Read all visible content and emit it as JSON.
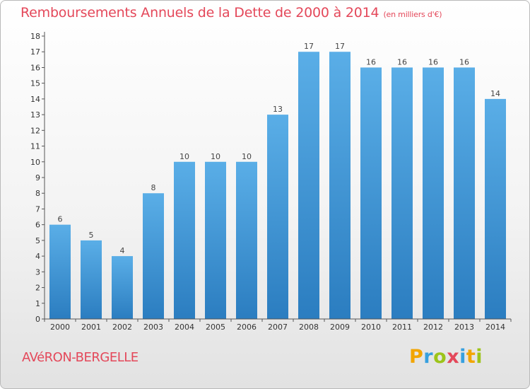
{
  "header": {
    "title": "Remboursements Annuels de la Dette de 2000 à 2014",
    "unit": "(en milliers d'€)"
  },
  "footer": {
    "commune": "AVéRON-BERGELLE",
    "logo_letters": [
      "P",
      "r",
      "o",
      "x",
      "i",
      "t",
      "i"
    ],
    "logo_colors": [
      "#f2a500",
      "#37a0df",
      "#9dc41a",
      "#e4485a",
      "#37a0df",
      "#f2a500",
      "#9dc41a"
    ]
  },
  "chart_data": {
    "type": "bar",
    "title": "Remboursements Annuels de la Dette de 2000 à 2014",
    "xlabel": "",
    "ylabel": "",
    "categories": [
      "2000",
      "2001",
      "2002",
      "2003",
      "2004",
      "2005",
      "2006",
      "2007",
      "2008",
      "2009",
      "2010",
      "2011",
      "2012",
      "2013",
      "2014"
    ],
    "values": [
      6,
      5,
      4,
      8,
      10,
      10,
      10,
      13,
      17,
      17,
      16,
      16,
      16,
      16,
      14
    ],
    "ylim": [
      0,
      18
    ],
    "yticks": [
      "0",
      "1",
      "2",
      "3",
      "4",
      "5",
      "6",
      "7",
      "8",
      "9",
      "10",
      "11",
      "12",
      "13",
      "14",
      "15",
      "16",
      "17",
      "18"
    ],
    "grid": false,
    "bar_color_top": "#5aaee7",
    "bar_color_bottom": "#2b7dc0",
    "axis_color": "#555555"
  }
}
